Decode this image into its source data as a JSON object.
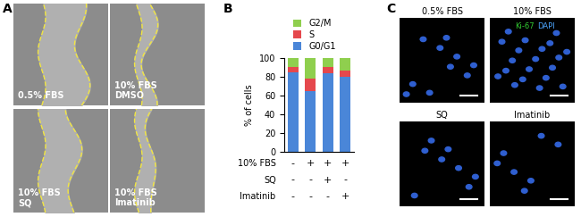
{
  "panel_labels": [
    "A",
    "B",
    "C"
  ],
  "panel_a": {
    "images": [
      "0.5% FBS",
      "10% FBS\nDMSO",
      "10% FBS\nSQ",
      "10% FBS\nImatinib"
    ]
  },
  "chart_data": {
    "type": "bar",
    "stacked": true,
    "categories": [
      null,
      null,
      null,
      null
    ],
    "ylabel": "% of cells",
    "ylim": [
      0,
      100
    ],
    "yticks": [
      0,
      20,
      40,
      60,
      80,
      100
    ],
    "tick_labels": "y",
    "legend": "lower left",
    "series": [
      {
        "name": "G0/G1",
        "color": "#4a86d8",
        "values": [
          85,
          65,
          84,
          80
        ]
      },
      {
        "name": "S",
        "color": "#e5484d",
        "values": [
          5,
          13,
          6,
          7
        ]
      },
      {
        "name": "G2/M",
        "color": "#8fcf4e",
        "values": [
          10,
          22,
          10,
          13
        ]
      }
    ],
    "treatment_rows": [
      {
        "name": "10% FBS",
        "signs": [
          "-",
          "+",
          "+",
          "+"
        ]
      },
      {
        "name": "SQ",
        "signs": [
          "-",
          "-",
          "+",
          "-"
        ]
      },
      {
        "name": "Imatinib",
        "signs": [
          "-",
          "-",
          "-",
          "+"
        ]
      }
    ]
  },
  "panel_c": {
    "images": [
      "0.5% FBS",
      "10% FBS",
      "SQ",
      "Imatinib"
    ],
    "stain_labels": [
      {
        "text": "Ki-67",
        "color": "#33cc33"
      },
      {
        "text": "DAPI",
        "color": "#4da6ff"
      }
    ]
  }
}
